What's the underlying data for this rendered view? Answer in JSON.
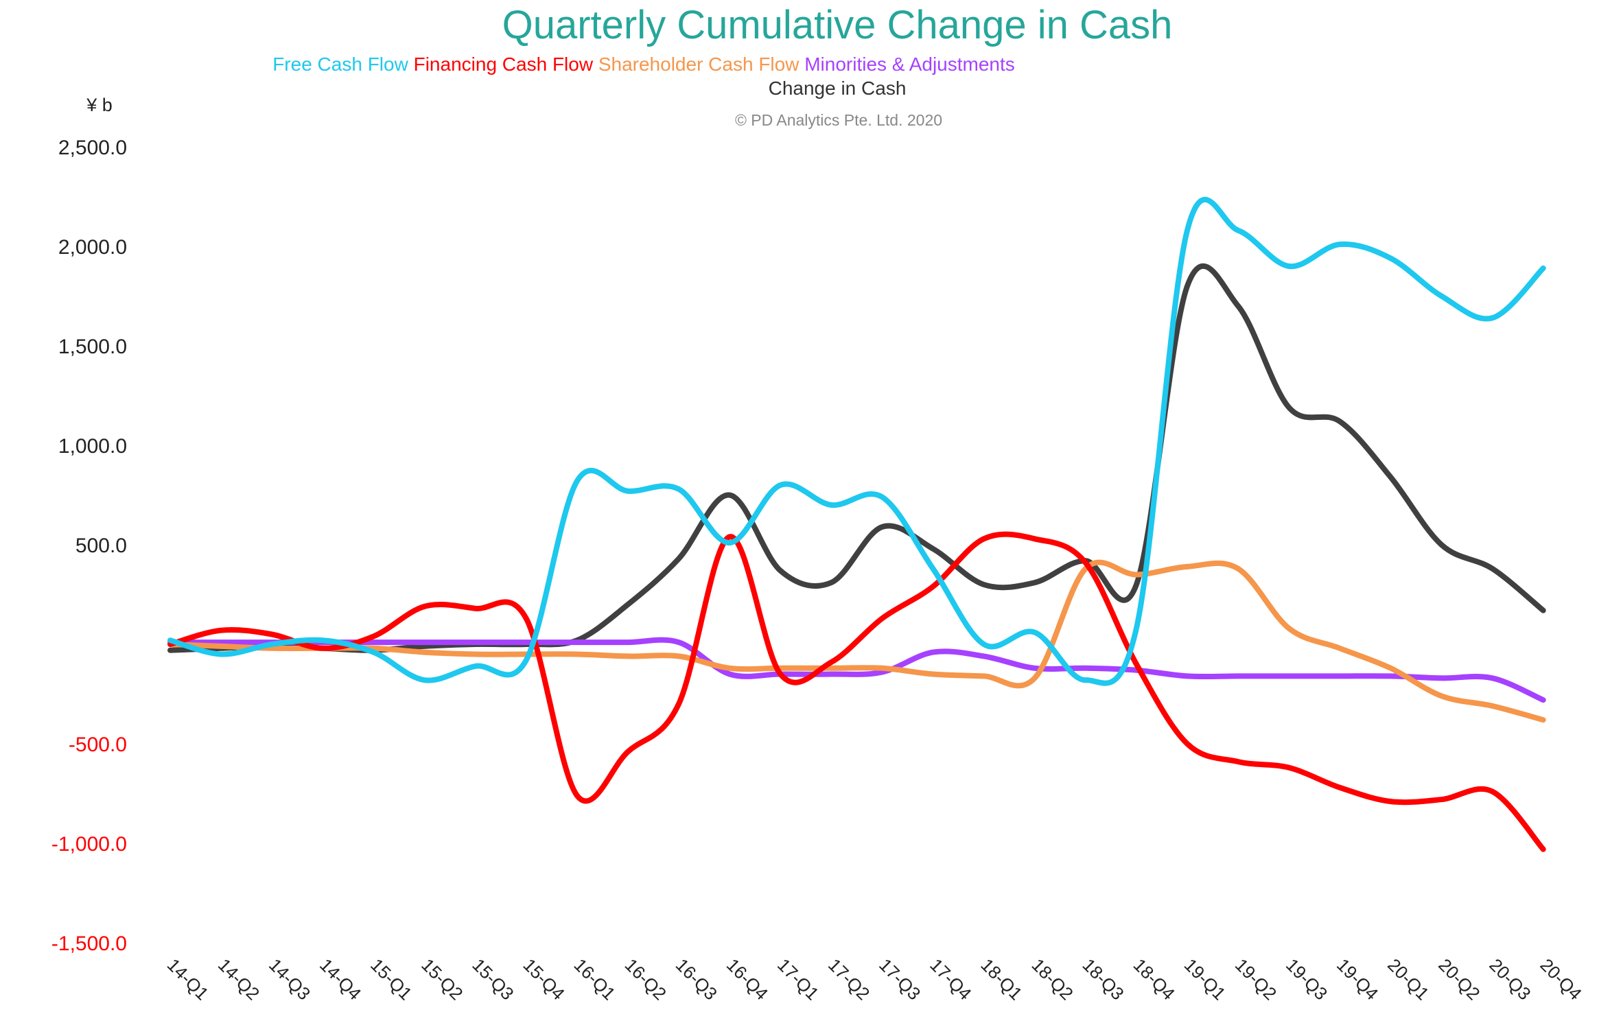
{
  "chart_data": {
    "type": "line",
    "title": "Quarterly Cumulative Change in Cash",
    "legend_line2": "Change in Cash",
    "copyright": "© PD Analytics Pte. Ltd. 2020",
    "unit_label": "¥ b",
    "ylim": [
      -1500,
      2500
    ],
    "y_ticks": [
      {
        "value": 2500,
        "label": "2,500.0"
      },
      {
        "value": 2000,
        "label": "2,000.0"
      },
      {
        "value": 1500,
        "label": "1,500.0"
      },
      {
        "value": 1000,
        "label": "1,000.0"
      },
      {
        "value": 500,
        "label": "500.0"
      },
      {
        "value": -500,
        "label": "-500.0"
      },
      {
        "value": -1000,
        "label": "-1,000.0"
      },
      {
        "value": -1500,
        "label": "-1,500.0"
      }
    ],
    "positive_tick_color": "#222222",
    "negative_tick_color": "#ff0000",
    "grid": false,
    "legend_position": "top-center",
    "categories": [
      "14-Q1",
      "14-Q2",
      "14-Q3",
      "14-Q4",
      "15-Q1",
      "15-Q2",
      "15-Q3",
      "15-Q4",
      "16-Q1",
      "16-Q2",
      "16-Q3",
      "16-Q4",
      "17-Q1",
      "17-Q2",
      "17-Q3",
      "17-Q4",
      "18-Q1",
      "18-Q2",
      "18-Q3",
      "18-Q4",
      "19-Q1",
      "19-Q2",
      "19-Q3",
      "19-Q4",
      "20-Q1",
      "20-Q2",
      "20-Q3",
      "20-Q4"
    ],
    "series": [
      {
        "name": "Free Cash Flow",
        "color": "#1ec8ee",
        "values": [
          20,
          -50,
          0,
          20,
          -40,
          -180,
          -110,
          -80,
          820,
          770,
          780,
          510,
          800,
          700,
          740,
          380,
          0,
          60,
          -180,
          80,
          2080,
          2080,
          1900,
          2010,
          1940,
          1750,
          1640,
          1890
        ]
      },
      {
        "name": "Financing Cash Flow",
        "color": "#ff0000",
        "values": [
          0,
          70,
          50,
          -20,
          40,
          190,
          180,
          130,
          -760,
          -540,
          -300,
          540,
          -150,
          -90,
          130,
          290,
          530,
          530,
          410,
          -100,
          -500,
          -590,
          -620,
          -720,
          -790,
          -780,
          -740,
          -1030
        ]
      },
      {
        "name": "Shareholder Cash Flow",
        "color": "#f5964b",
        "values": [
          0,
          -10,
          -20,
          -20,
          -20,
          -40,
          -50,
          -50,
          -50,
          -60,
          -60,
          -120,
          -120,
          -120,
          -120,
          -150,
          -160,
          -170,
          380,
          350,
          390,
          380,
          80,
          -20,
          -120,
          -260,
          -310,
          -380
        ]
      },
      {
        "name": "Minorities & Adjustments",
        "color": "#a641ff",
        "values": [
          10,
          10,
          10,
          10,
          10,
          10,
          10,
          10,
          10,
          10,
          10,
          -150,
          -150,
          -150,
          -140,
          -40,
          -60,
          -120,
          -120,
          -130,
          -160,
          -160,
          -160,
          -160,
          -160,
          -170,
          -170,
          -280
        ]
      },
      {
        "name": "Change in Cash",
        "color": "#404040",
        "values": [
          -30,
          -20,
          -10,
          -20,
          -30,
          -10,
          0,
          0,
          20,
          200,
          430,
          750,
          370,
          310,
          590,
          480,
          300,
          310,
          420,
          300,
          1800,
          1700,
          1190,
          1120,
          840,
          500,
          380,
          170
        ]
      }
    ]
  }
}
